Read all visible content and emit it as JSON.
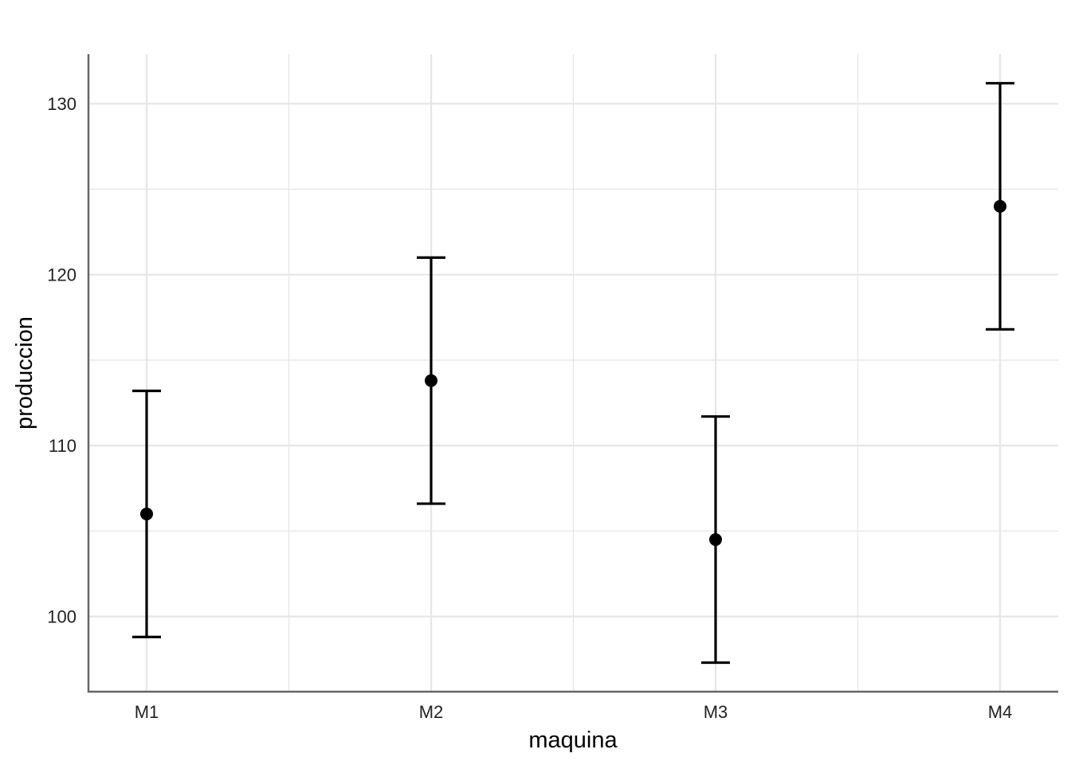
{
  "chart_data": {
    "type": "errorbar",
    "xlabel": "maquina",
    "ylabel": "produccion",
    "categories": [
      "M1",
      "M2",
      "M3",
      "M4"
    ],
    "series": [
      {
        "points": [
          {
            "x": "M1",
            "y": 106.0,
            "lower": 98.8,
            "upper": 113.2
          },
          {
            "x": "M2",
            "y": 113.8,
            "lower": 106.6,
            "upper": 121.0
          },
          {
            "x": "M3",
            "y": 104.5,
            "lower": 97.3,
            "upper": 111.7
          },
          {
            "x": "M4",
            "y": 124.0,
            "lower": 116.8,
            "upper": 131.2
          }
        ]
      }
    ],
    "ylim": [
      95.6,
      132.9
    ],
    "yticks": [
      100,
      110,
      120,
      130
    ],
    "grid": true,
    "legend": "none",
    "colors": {
      "points": "#000000",
      "grid": "#e6e6e6",
      "axis": "#666666"
    }
  }
}
